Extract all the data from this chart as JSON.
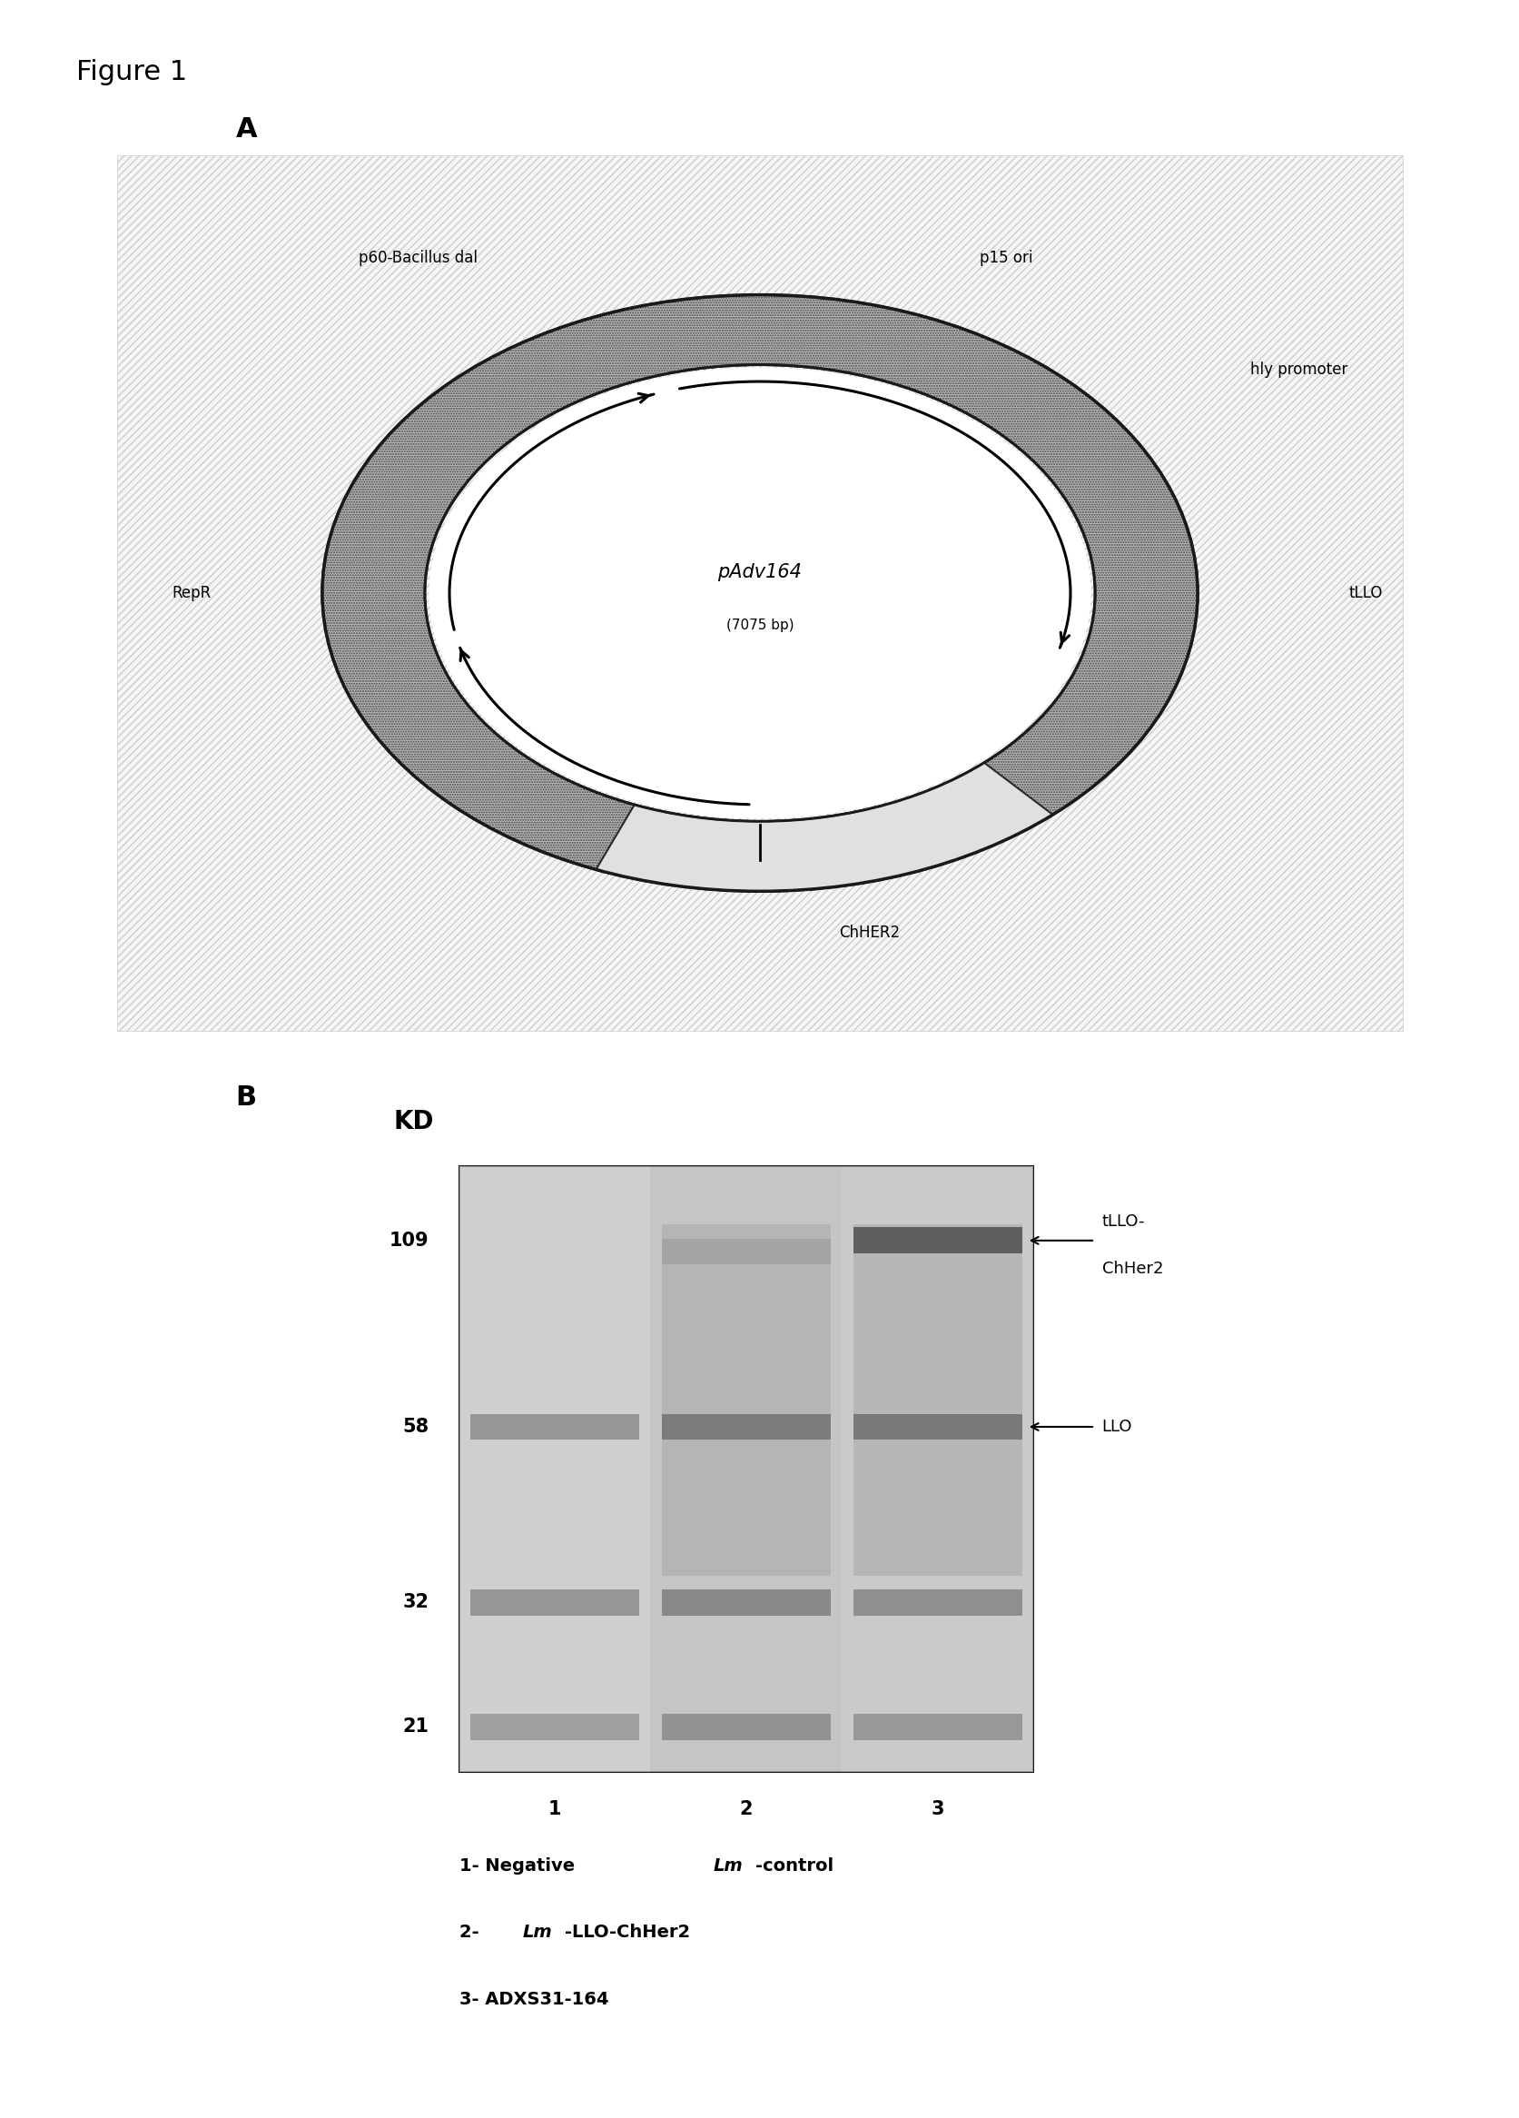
{
  "figure_label": "Figure 1",
  "panel_a_label": "A",
  "panel_b_label": "B",
  "plasmid_name": "pAdv164",
  "plasmid_size": "(7075 bp)",
  "plasmid_labels": {
    "top_left": "p60-Bacillus dal",
    "top_right": "p15 ori",
    "right_top": "hly promoter",
    "right_mid": "tLLO",
    "bottom": "ChHER2",
    "left": "RepR"
  },
  "western_labels": {
    "kd_label": "KD",
    "mw_markers": [
      109,
      58,
      32,
      21
    ],
    "lane_labels": [
      "1",
      "2",
      "3"
    ],
    "legend_lines": [
      "1- Negative Lm-control",
      "2- Lm-LLO-ChHer2",
      "3- ADXS31-164"
    ]
  },
  "background_color": "#ffffff",
  "text_color": "#000000"
}
